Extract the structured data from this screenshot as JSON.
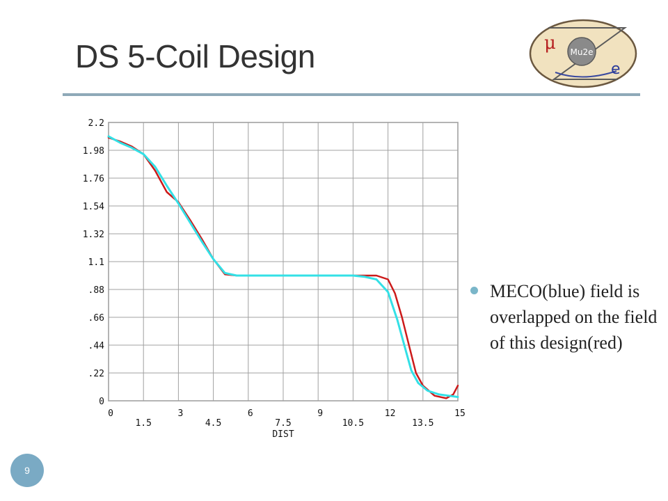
{
  "slide": {
    "title": "DS 5-Coil Design",
    "page_number": "9",
    "bullet": "MECO(blue) field is overlapped on the field of this design(red)"
  },
  "logo": {
    "name": "Mu2e-logo-icon",
    "text_mu": "μ",
    "text_center": "Mu2e",
    "text_e": "e"
  },
  "colors": {
    "rule": "#8ea9b8",
    "badge": "#7aaac4",
    "grid": "#a0a0a0",
    "red": "#cc1a1a",
    "blue": "#33e0e6"
  },
  "chart_data": {
    "type": "line",
    "xlabel": "DIST",
    "ylabel": "",
    "xlim": [
      0,
      15
    ],
    "ylim": [
      0,
      2.2
    ],
    "x_ticks_upper": [
      "0",
      "3",
      "6",
      "9",
      "12",
      "15"
    ],
    "x_ticks_lower": [
      "1.5",
      "4.5",
      "7.5",
      "10.5",
      "13.5"
    ],
    "y_ticks": [
      "2.2",
      "1.98",
      "1.76",
      "1.54",
      "1.32",
      "1.1",
      ".88",
      ".66",
      ".44",
      ".22",
      "0"
    ],
    "grid": true,
    "series": [
      {
        "color": "#cc1a1a",
        "points": [
          [
            0,
            2.08
          ],
          [
            0.5,
            2.05
          ],
          [
            1.0,
            2.01
          ],
          [
            1.5,
            1.95
          ],
          [
            2.0,
            1.82
          ],
          [
            2.5,
            1.65
          ],
          [
            3.0,
            1.57
          ],
          [
            3.5,
            1.43
          ],
          [
            4.0,
            1.28
          ],
          [
            4.5,
            1.12
          ],
          [
            5.0,
            1.0
          ],
          [
            5.5,
            0.99
          ],
          [
            6.0,
            0.99
          ],
          [
            7.5,
            0.99
          ],
          [
            9.0,
            0.99
          ],
          [
            10.5,
            0.99
          ],
          [
            11.5,
            0.99
          ],
          [
            12.0,
            0.96
          ],
          [
            12.3,
            0.85
          ],
          [
            12.6,
            0.66
          ],
          [
            12.9,
            0.44
          ],
          [
            13.2,
            0.22
          ],
          [
            13.5,
            0.12
          ],
          [
            14.0,
            0.04
          ],
          [
            14.5,
            0.02
          ],
          [
            14.8,
            0.05
          ],
          [
            15.0,
            0.12
          ]
        ]
      },
      {
        "color": "#33e0e6",
        "points": [
          [
            0,
            2.09
          ],
          [
            0.5,
            2.04
          ],
          [
            1.0,
            2.0
          ],
          [
            1.5,
            1.95
          ],
          [
            2.0,
            1.85
          ],
          [
            2.5,
            1.7
          ],
          [
            3.0,
            1.56
          ],
          [
            3.5,
            1.41
          ],
          [
            4.0,
            1.26
          ],
          [
            4.5,
            1.12
          ],
          [
            5.0,
            1.01
          ],
          [
            5.5,
            0.99
          ],
          [
            6.0,
            0.99
          ],
          [
            7.5,
            0.99
          ],
          [
            9.0,
            0.99
          ],
          [
            10.5,
            0.99
          ],
          [
            11.0,
            0.98
          ],
          [
            11.5,
            0.96
          ],
          [
            12.0,
            0.86
          ],
          [
            12.4,
            0.64
          ],
          [
            12.7,
            0.44
          ],
          [
            13.0,
            0.24
          ],
          [
            13.3,
            0.14
          ],
          [
            13.7,
            0.08
          ],
          [
            14.2,
            0.05
          ],
          [
            14.6,
            0.04
          ],
          [
            15.0,
            0.03
          ]
        ]
      }
    ]
  }
}
